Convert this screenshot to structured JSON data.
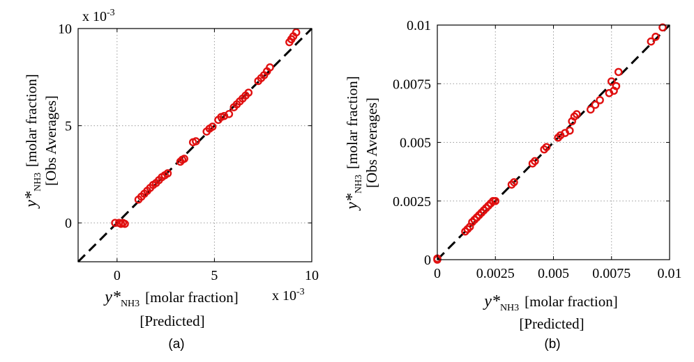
{
  "chart_data": [
    {
      "type": "scatter",
      "panel_label": "(a)",
      "ylabel": "[molar fraction]",
      "ylabel2": "[Obs Averages]",
      "xlabel": "[molar fraction]",
      "xlabel2": "[Predicted]",
      "symbol_var": "y*",
      "symbol_sub": "NH3",
      "sci_factor": "x 10",
      "sci_exp": "-3",
      "xlim": [
        -2,
        10
      ],
      "ylim": [
        -2,
        10
      ],
      "xticks": [
        "0",
        "5",
        "10"
      ],
      "yticks": [
        "0",
        "5",
        "10"
      ],
      "xtick_values": [
        0,
        5,
        10
      ],
      "ytick_values": [
        0,
        5,
        10
      ],
      "grid": true,
      "reference_line": "y=x",
      "x": [
        -0.1,
        0.1,
        0.2,
        0.3,
        0.4,
        1.1,
        1.25,
        1.4,
        1.55,
        1.7,
        1.85,
        2.0,
        2.15,
        2.3,
        2.45,
        2.6,
        3.25,
        3.35,
        3.45,
        3.9,
        4.05,
        4.6,
        4.75,
        4.9,
        5.2,
        5.35,
        5.5,
        5.75,
        6.0,
        6.15,
        6.3,
        6.45,
        6.6,
        6.75,
        7.25,
        7.4,
        7.55,
        7.7,
        7.85,
        8.85,
        8.95,
        9.05,
        9.2
      ],
      "y": [
        0.0,
        0.0,
        -0.05,
        0.0,
        -0.05,
        1.2,
        1.35,
        1.5,
        1.65,
        1.8,
        1.95,
        2.05,
        2.2,
        2.35,
        2.45,
        2.55,
        3.15,
        3.25,
        3.3,
        4.15,
        4.2,
        4.7,
        4.85,
        4.95,
        5.3,
        5.45,
        5.5,
        5.6,
        5.95,
        6.1,
        6.25,
        6.4,
        6.55,
        6.7,
        7.3,
        7.45,
        7.6,
        7.8,
        8.0,
        9.3,
        9.45,
        9.6,
        9.8
      ]
    },
    {
      "type": "scatter",
      "panel_label": "(b)",
      "ylabel": "[molar fraction]",
      "ylabel2": "[Obs Averages]",
      "xlabel": "[molar fraction]",
      "xlabel2": "[Predicted]",
      "symbol_var": "y*",
      "symbol_sub": "NH3",
      "xlim": [
        0,
        0.01
      ],
      "ylim": [
        0,
        0.01
      ],
      "xticks": [
        "0",
        "0.0025",
        "0.005",
        "0.0075",
        "0.01"
      ],
      "yticks": [
        "0",
        "0.0025",
        "0.005",
        "0.0075",
        "0.01"
      ],
      "xtick_values": [
        0,
        0.0025,
        0.005,
        0.0075,
        0.01
      ],
      "ytick_values": [
        0,
        0.0025,
        0.005,
        0.0075,
        0.01
      ],
      "grid": true,
      "reference_line": "y=x",
      "x": [
        0.0,
        0.0,
        0.0012,
        0.0013,
        0.0014,
        0.0015,
        0.0016,
        0.0017,
        0.0018,
        0.0019,
        0.002,
        0.0021,
        0.0022,
        0.0023,
        0.0024,
        0.0025,
        0.0032,
        0.0033,
        0.0041,
        0.0042,
        0.0046,
        0.0047,
        0.0052,
        0.0053,
        0.0055,
        0.0057,
        0.0058,
        0.0059,
        0.006,
        0.0066,
        0.0068,
        0.007,
        0.0074,
        0.0075,
        0.0076,
        0.0077,
        0.0078,
        0.0092,
        0.0094,
        0.0097
      ],
      "y": [
        0.0,
        5e-05,
        0.0012,
        0.0013,
        0.0014,
        0.0016,
        0.0017,
        0.0018,
        0.0019,
        0.002,
        0.0021,
        0.0022,
        0.0023,
        0.0024,
        0.0025,
        0.0025,
        0.0032,
        0.0033,
        0.0041,
        0.0042,
        0.0047,
        0.0048,
        0.0052,
        0.0053,
        0.0054,
        0.0055,
        0.0059,
        0.0061,
        0.0062,
        0.0064,
        0.0066,
        0.0068,
        0.0071,
        0.0076,
        0.0072,
        0.0074,
        0.008,
        0.0093,
        0.0095,
        0.0099
      ]
    }
  ]
}
